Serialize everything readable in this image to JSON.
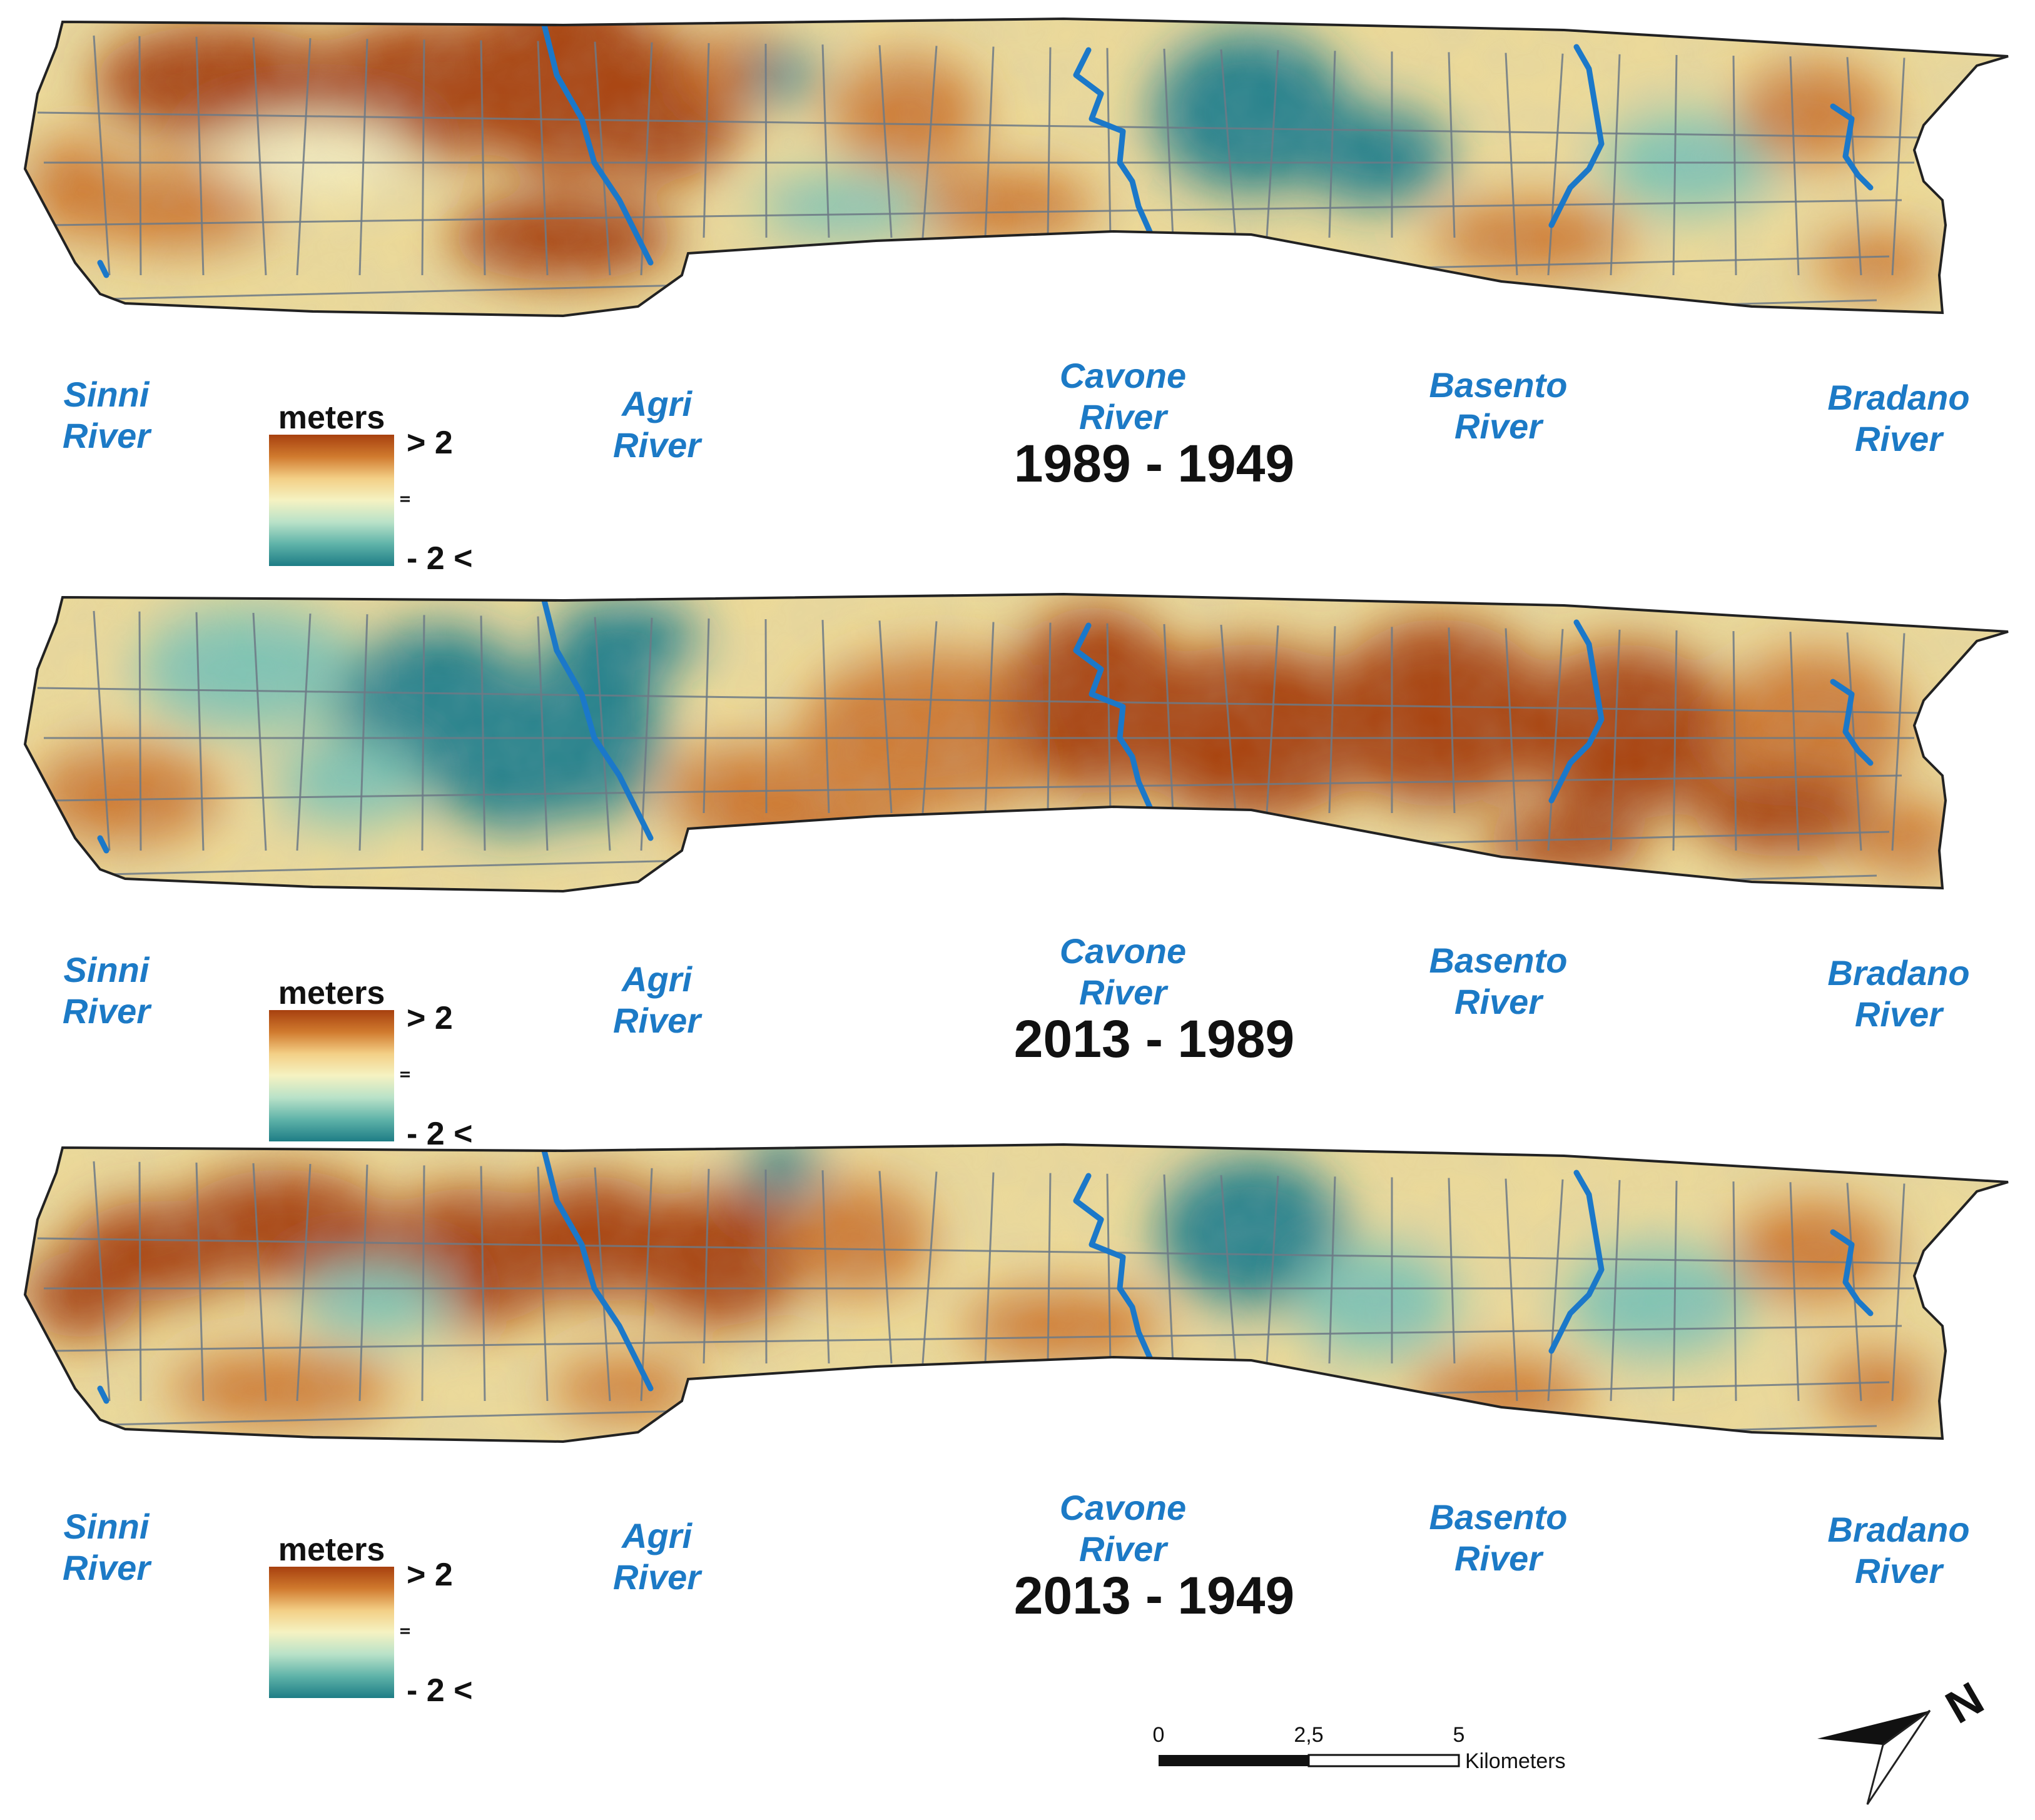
{
  "panels": [
    {
      "title": "1989 - 1949",
      "dominant": "positive-west",
      "rivers": [
        "Sinni\nRiver",
        "Agri\nRiver",
        "Cavone\nRiver",
        "Basento\nRiver",
        "Bradano\nRiver"
      ]
    },
    {
      "title": "2013 - 1989",
      "dominant": "positive-east",
      "rivers": [
        "Sinni\nRiver",
        "Agri\nRiver",
        "Cavone\nRiver",
        "Basento\nRiver",
        "Bradano\nRiver"
      ]
    },
    {
      "title": "2013 - 1949",
      "dominant": "mixed",
      "rivers": [
        "Sinni\nRiver",
        "Agri\nRiver",
        "Cavone\nRiver",
        "Basento\nRiver",
        "Bradano\nRiver"
      ]
    }
  ],
  "legend": {
    "title": "meters",
    "high_label": "> 2",
    "low_label": "- 2 <",
    "colors": [
      "#a7400f",
      "#d07a2e",
      "#f3cf86",
      "#f5f2c2",
      "#b9e2c8",
      "#5fb3a9",
      "#1e7d86"
    ]
  },
  "scale_bar": {
    "labels": [
      "0",
      "2,5",
      "5"
    ],
    "unit": "Kilometers"
  },
  "north_arrow": {
    "label": "N",
    "icon": "north-arrow-icon"
  },
  "colors": {
    "river": "#1b78c9",
    "road": "#6d7a86",
    "outline": "#222222"
  }
}
